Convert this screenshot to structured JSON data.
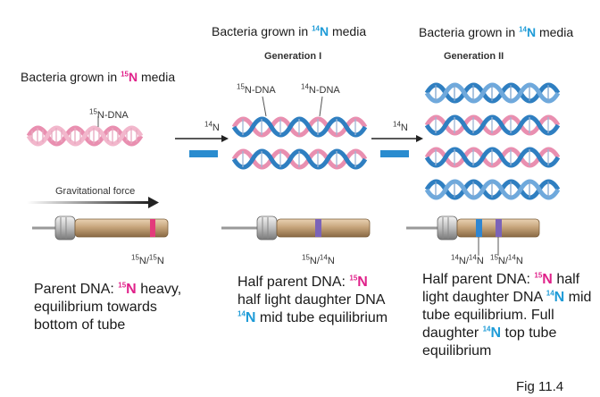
{
  "headers": {
    "h1_prefix": "Bacteria grown in ",
    "h1_iso": "14",
    "h1_el": "N",
    "h1_suffix": " media",
    "h2_prefix": "Bacteria grown in ",
    "h2_iso": "14",
    "h2_el": "N",
    "h2_suffix": " media",
    "left_prefix": "Bacteria grown in ",
    "left_iso": "15",
    "left_el": "N",
    "left_suffix": " media"
  },
  "generations": {
    "gen1": "Generation I",
    "gen2": "Generation II"
  },
  "dna_labels": {
    "parent_iso": "15",
    "parent_text": "N-DNA",
    "g1_left_iso": "15",
    "g1_left_text": "N-DNA",
    "g1_right_iso": "14",
    "g1_right_text": "N-DNA",
    "arrow1_iso": "14",
    "arrow1_el": "N",
    "arrow2_iso": "14",
    "arrow2_el": "N"
  },
  "force_label": "Gravitational force",
  "tube_labels": {
    "t1": {
      "a_iso": "15",
      "a_el": "N/",
      "b_iso": "15",
      "b_el": "N"
    },
    "t2": {
      "a_iso": "15",
      "a_el": "N/",
      "b_iso": "14",
      "b_el": "N"
    },
    "t3a": {
      "a_iso": "14",
      "a_el": "N/",
      "b_iso": "14",
      "b_el": "N"
    },
    "t3b": {
      "a_iso": "15",
      "a_el": "N/",
      "b_iso": "14",
      "b_el": "N"
    }
  },
  "captions": {
    "c1_pre": "Parent DNA: ",
    "c1_iso": "15",
    "c1_el": "N",
    "c1_rest": "heavy, equilibrium towards bottom of tube",
    "c2_pre": "Half parent DNA: ",
    "c2_iso": "15",
    "c2_el": "N",
    "c2_mid": "half light daughter DNA ",
    "c2_iso2": "14",
    "c2_el2": "N",
    "c2_rest": " mid tube equilibrium",
    "c3_pre": "Half parent DNA: ",
    "c3_iso": "15",
    "c3_el": "N",
    "c3_mid": "half light daughter DNA ",
    "c3_iso2": "14",
    "c3_el2": "N",
    "c3_mid2": " mid tube equilibrium. Full daughter ",
    "c3_iso3": "14",
    "c3_el3": "N",
    "c3_rest": " top tube equilibrium"
  },
  "figure_label": "Fig 11.4",
  "colors": {
    "n15": "#e0218a",
    "n14": "#1e9bd7",
    "heavy_strand": "#e98fb0",
    "light_strand": "#2f7fc1",
    "arrow_block": "#2a8ccf"
  }
}
